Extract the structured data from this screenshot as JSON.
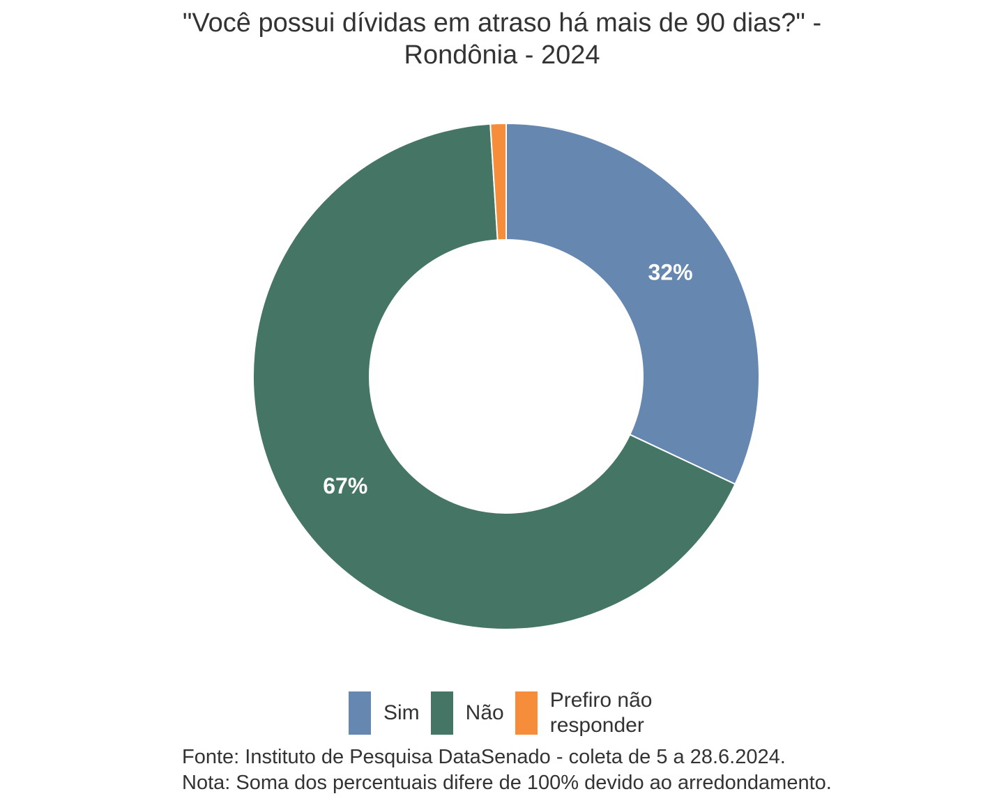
{
  "chart_data": {
    "type": "pie",
    "style": "donut",
    "title_lines": [
      "\"Você possui dívidas em atraso há mais de 90 dias?\" -",
      "Rondônia - 2024"
    ],
    "slices": [
      {
        "label": "Sim",
        "value": 32,
        "display": "32%",
        "color": "#6688b0"
      },
      {
        "label": "Não",
        "value": 67,
        "display": "67%",
        "color": "#457564"
      },
      {
        "label": "Prefiro não responder",
        "value": 1,
        "display": "",
        "color": "#f58d3a"
      }
    ],
    "legend": {
      "position": "bottom",
      "items": [
        {
          "label": "Sim",
          "color": "#6688b0"
        },
        {
          "label": "Não",
          "color": "#457564"
        },
        {
          "label_lines": [
            "Prefiro não",
            "responder"
          ],
          "color": "#f58d3a"
        }
      ]
    },
    "caption_lines": [
      "Fonte: Instituto de Pesquisa DataSenado - coleta de 5 a 28.6.2024.",
      "Nota: Soma dos percentuais difere de 100% devido ao arredondamento."
    ]
  }
}
